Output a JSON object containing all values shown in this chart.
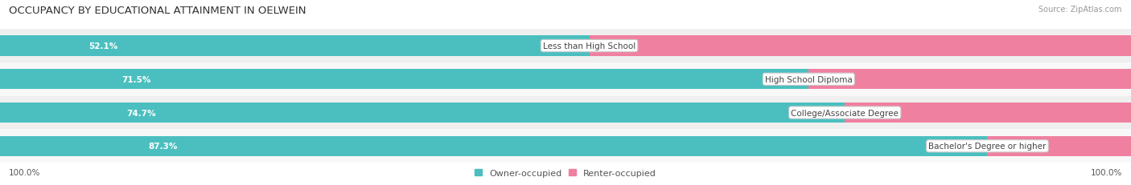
{
  "title": "OCCUPANCY BY EDUCATIONAL ATTAINMENT IN OELWEIN",
  "source": "Source: ZipAtlas.com",
  "categories": [
    "Less than High School",
    "High School Diploma",
    "College/Associate Degree",
    "Bachelor's Degree or higher"
  ],
  "owner_pct": [
    52.1,
    71.5,
    74.7,
    87.3
  ],
  "renter_pct": [
    47.9,
    28.5,
    25.3,
    12.7
  ],
  "owner_color": "#4BBFBF",
  "renter_color": "#F080A0",
  "row_bg_colors": [
    "#EFEFEF",
    "#F8F8F8",
    "#EFEFEF",
    "#F8F8F8"
  ],
  "title_fontsize": 9.5,
  "label_fontsize": 7.5,
  "tick_fontsize": 7.5,
  "source_fontsize": 7,
  "legend_fontsize": 8,
  "axis_label_left": "100.0%",
  "axis_label_right": "100.0%",
  "bar_height": 0.6,
  "fig_width": 14.06,
  "fig_height": 2.32
}
